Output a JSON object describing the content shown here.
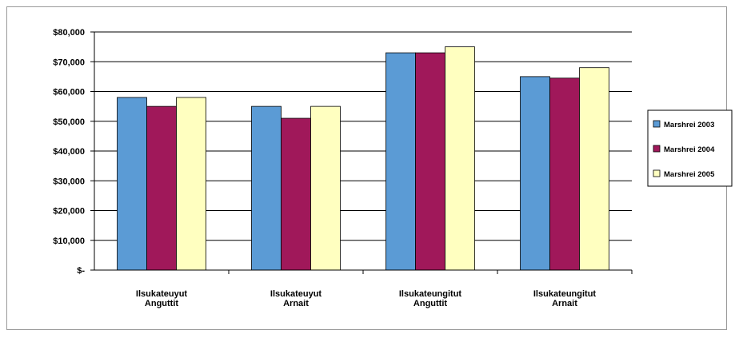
{
  "chart_data": {
    "type": "bar",
    "categories": [
      [
        "Ilsukateuyut",
        "Anguttit"
      ],
      [
        "Ilsukateuyut",
        "Arnait"
      ],
      [
        "Ilsukateungitut",
        "Anguttit"
      ],
      [
        "Ilsukateungitut",
        "Arnait"
      ]
    ],
    "series": [
      {
        "name": "Marshrei 2003",
        "values": [
          58000,
          55000,
          73000,
          65000
        ],
        "color": "#5b9bd5"
      },
      {
        "name": "Marshrei 2004",
        "values": [
          55000,
          51000,
          73000,
          64500
        ],
        "color": "#a0185a"
      },
      {
        "name": "Marshrei 2005",
        "values": [
          58000,
          55000,
          75000,
          68000
        ],
        "color": "#ffffc0"
      }
    ],
    "yticks": [
      "$-",
      "$10,000",
      "$20,000",
      "$30,000",
      "$40,000",
      "$50,000",
      "$60,000",
      "$70,000",
      "$80,000"
    ],
    "ylim": [
      0,
      80000
    ],
    "grid": true,
    "legend": "right",
    "title": "",
    "xlabel": "",
    "ylabel": ""
  }
}
